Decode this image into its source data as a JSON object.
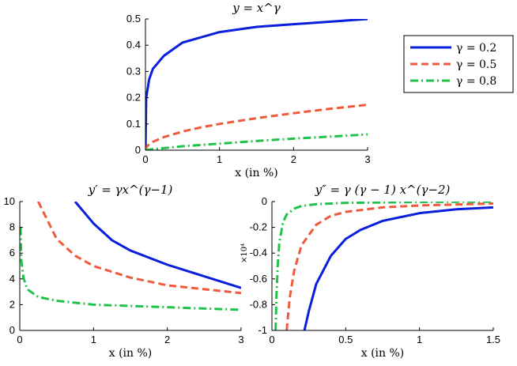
{
  "chart_data": [
    {
      "type": "line",
      "title": "y = x^γ",
      "xlabel": "x (in %)",
      "ylabel": "",
      "xlim": [
        0,
        3
      ],
      "ylim": [
        0,
        0.5
      ],
      "x_ticks": [
        "0",
        "1",
        "2",
        "3"
      ],
      "y_ticks": [
        "0",
        "0.1",
        "0.2",
        "0.3",
        "0.4",
        "0.5"
      ],
      "grid": false,
      "legend": {
        "position": "right",
        "entries": [
          "γ = 0.2",
          "γ = 0.5",
          "γ = 0.8"
        ]
      },
      "series": [
        {
          "name": "γ = 0.2",
          "color": "#0a1fdc",
          "style": "solid",
          "x": [
            0,
            0.01,
            0.05,
            0.1,
            0.25,
            0.5,
            0.75,
            1,
            1.5,
            2,
            2.5,
            3
          ],
          "y": [
            0,
            0.2,
            0.27,
            0.31,
            0.36,
            0.41,
            0.43,
            0.45,
            0.47,
            0.48,
            0.49,
            0.5
          ]
        },
        {
          "name": "γ = 0.5",
          "color": "#f05a3c",
          "style": "dashed",
          "x": [
            0,
            0.01,
            0.05,
            0.1,
            0.25,
            0.5,
            0.75,
            1,
            1.5,
            2,
            2.5,
            3
          ],
          "y": [
            0,
            0.01,
            0.023,
            0.032,
            0.05,
            0.071,
            0.087,
            0.1,
            0.122,
            0.141,
            0.158,
            0.173
          ]
        },
        {
          "name": "γ = 0.8",
          "color": "#21c24a",
          "style": "dashdot",
          "x": [
            0,
            0.1,
            0.25,
            0.5,
            0.75,
            1,
            1.5,
            2,
            2.5,
            3
          ],
          "y": [
            0,
            0.004,
            0.008,
            0.015,
            0.02,
            0.025,
            0.035,
            0.044,
            0.052,
            0.06
          ]
        }
      ]
    },
    {
      "type": "line",
      "title": "y′ = γx^(γ−1)",
      "xlabel": "x (in %)",
      "ylabel": "",
      "xlim": [
        0,
        3
      ],
      "ylim": [
        0,
        10
      ],
      "x_ticks": [
        "0",
        "1",
        "2",
        "3"
      ],
      "y_ticks": [
        "0",
        "2",
        "4",
        "6",
        "8",
        "10"
      ],
      "grid": false,
      "series": [
        {
          "name": "γ = 0.2",
          "color": "#0a1fdc",
          "style": "solid",
          "x": [
            0.75,
            1,
            1.25,
            1.5,
            2,
            2.5,
            3
          ],
          "y": [
            10.0,
            8.3,
            7.0,
            6.2,
            5.1,
            4.2,
            3.3
          ]
        },
        {
          "name": "γ = 0.5",
          "color": "#f05a3c",
          "style": "dashed",
          "x": [
            0.25,
            0.5,
            0.75,
            1,
            1.5,
            2,
            2.5,
            3
          ],
          "y": [
            10.0,
            7.1,
            5.8,
            5.0,
            4.1,
            3.5,
            3.2,
            2.9
          ]
        },
        {
          "name": "γ = 0.8",
          "color": "#21c24a",
          "style": "dashdot",
          "x": [
            0.01,
            0.02,
            0.05,
            0.1,
            0.25,
            0.5,
            1,
            1.5,
            2,
            2.5,
            3
          ],
          "y": [
            8.0,
            5.5,
            4.1,
            3.2,
            2.6,
            2.3,
            2.0,
            1.9,
            1.8,
            1.7,
            1.6
          ]
        }
      ]
    },
    {
      "type": "line",
      "title": "y″ = γ (γ − 1) x^(γ−2)",
      "xlabel": "x (in %)",
      "ylabel": "",
      "y_multiplier": "×10⁴",
      "xlim": [
        0,
        1.5
      ],
      "ylim": [
        -1,
        0
      ],
      "x_ticks": [
        "0",
        "0.5",
        "1",
        "1.5"
      ],
      "y_ticks": [
        "-1",
        "-0.8",
        "-0.6",
        "-0.4",
        "-0.2",
        "0"
      ],
      "grid": false,
      "series": [
        {
          "name": "γ = 0.2",
          "color": "#0a1fdc",
          "style": "solid",
          "x": [
            0.22,
            0.25,
            0.3,
            0.4,
            0.5,
            0.6,
            0.75,
            1,
            1.25,
            1.5
          ],
          "y": [
            -1.0,
            -0.85,
            -0.64,
            -0.42,
            -0.29,
            -0.22,
            -0.15,
            -0.09,
            -0.06,
            -0.045
          ]
        },
        {
          "name": "γ = 0.5",
          "color": "#f05a3c",
          "style": "dashed",
          "x": [
            0.1,
            0.12,
            0.15,
            0.2,
            0.3,
            0.4,
            0.5,
            0.75,
            1,
            1.5
          ],
          "y": [
            -1.0,
            -0.75,
            -0.54,
            -0.34,
            -0.18,
            -0.11,
            -0.08,
            -0.045,
            -0.03,
            -0.015
          ]
        },
        {
          "name": "γ = 0.8",
          "color": "#21c24a",
          "style": "dashdot",
          "x": [
            0.025,
            0.03,
            0.04,
            0.05,
            0.075,
            0.1,
            0.15,
            0.2,
            0.3,
            0.5,
            1,
            1.5
          ],
          "y": [
            -1.0,
            -0.75,
            -0.48,
            -0.32,
            -0.16,
            -0.1,
            -0.055,
            -0.035,
            -0.02,
            -0.01,
            -0.003,
            -0.001
          ]
        }
      ]
    }
  ]
}
